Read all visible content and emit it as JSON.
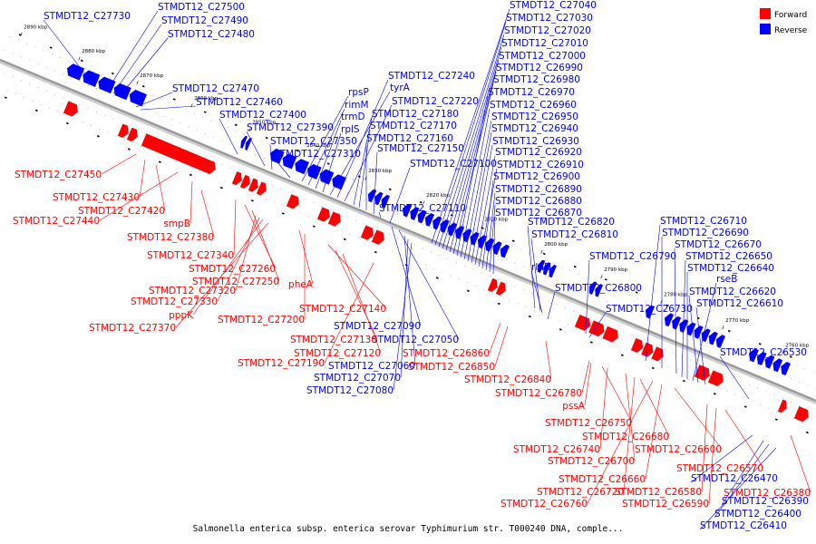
{
  "caption": "Salmonella enterica subsp. enterica serovar Typhimurium str. T000240 DNA, comple...",
  "legend": [
    {
      "label": "Forward",
      "color": "#ff0000"
    },
    {
      "label": "Reverse",
      "color": "#0000ff"
    }
  ],
  "colors": {
    "forward": "#ff0000",
    "reverse": "#0000ff",
    "backbone": "#999999"
  },
  "ticks": [
    "2890 kbp",
    "2880 kbp",
    "2870 kbp",
    "2860 kbp",
    "2850 kbp",
    "2840 kbp",
    "2830 kbp",
    "2820 kbp",
    "2810 kbp",
    "2800 kbp",
    "2790 kbp",
    "2780 kbp",
    "2770 kbp",
    "2760 kbp"
  ],
  "reverse_labels": [
    "STMDT12_C27730",
    "STMDT12_C27500",
    "STMDT12_C27490",
    "STMDT12_C27480",
    "STMDT12_C27470",
    "STMDT12_C27460",
    "STMDT12_C27400",
    "STMDT12_C27390",
    "STMDT12_C27350",
    "STMDT12_C27310",
    "rpsP",
    "rimM",
    "trmD",
    "rplS",
    "tyrA",
    "STMDT12_C27240",
    "STMDT12_C27220",
    "STMDT12_C27180",
    "STMDT12_C27170",
    "STMDT12_C27160",
    "STMDT12_C27150",
    "STMDT12_C27100",
    "STMDT12_C27110",
    "STMDT12_C27040",
    "STMDT12_C27030",
    "STMDT12_C27020",
    "STMDT12_C27010",
    "STMDT12_C27000",
    "STMDT12_C26990",
    "STMDT12_C26980",
    "STMDT12_C26970",
    "STMDT12_C26960",
    "STMDT12_C26950",
    "STMDT12_C26940",
    "STMDT12_C26930",
    "STMDT12_C26920",
    "STMDT12_C26910",
    "STMDT12_C26900",
    "STMDT12_C26890",
    "STMDT12_C26880",
    "STMDT12_C26870",
    "STMDT12_C26820",
    "STMDT12_C26810",
    "rluD",
    "STMDT12_C26790",
    "STMDT12_C26800",
    "STMDT12_C26730",
    "STMDT12_C26710",
    "STMDT12_C26690",
    "STMDT12_C26670",
    "STMDT12_C26650",
    "STMDT12_C26640",
    "rseB",
    "STMDT12_C26620",
    "STMDT12_C26610",
    "STMDT12_C26530",
    "STMDT12_C27090",
    "STMDT12_C27050",
    "STMDT12_C27060",
    "STMDT12_C27070",
    "STMDT12_C27080",
    "STMDT12_C26470",
    "STMDT12_C26390",
    "STMDT12_C26400",
    "STMDT12_C26410"
  ],
  "forward_labels": [
    "STMDT12_C27450",
    "STMDT12_C27430",
    "STMDT12_C27420",
    "STMDT12_C27440",
    "smpB",
    "STMDT12_C27380",
    "STMDT12_C27340",
    "STMDT12_C27260",
    "STMDT12_C27250",
    "STMDT12_C27320",
    "STMDT12_C27330",
    "pppK",
    "STMDT12_C27370",
    "pheA",
    "STMDT12_C27200",
    "STMDT12_C27140",
    "STMDT12_C27130",
    "STMDT12_C27120",
    "STMDT12_C27190",
    "STMDT12_C26860",
    "STMDT12_C26850",
    "STMDT12_C26840",
    "STMDT12_C26780",
    "pssA",
    "STMDT12_C26750",
    "STMDT12_C26740",
    "STMDT12_C26680",
    "STMDT12_C26700",
    "STMDT12_C26600",
    "STMDT12_C26660",
    "STMDT12_C26720",
    "STMDT12_C26760",
    "STMDT12_C26580",
    "STMDT12_C26590",
    "STMDT12_C26570",
    "STMDT12_C26380"
  ]
}
